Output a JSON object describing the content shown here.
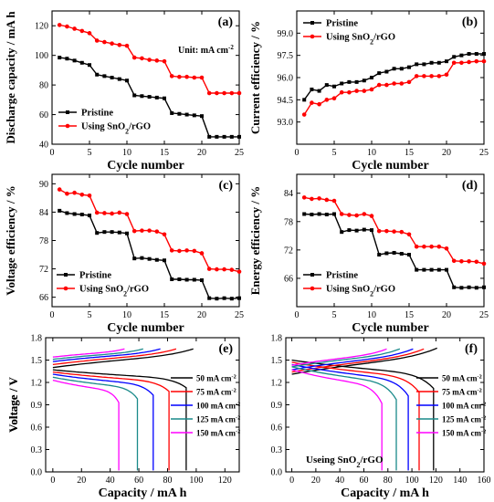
{
  "figure": {
    "panels": [
      {
        "letter": "(a)",
        "chart_data": {
          "type": "line",
          "xlabel": "Cycle number",
          "ylabel": "Discharge capacity / mA h",
          "xlim": [
            0,
            25
          ],
          "ylim": [
            40,
            130
          ],
          "xticks": [
            0,
            5,
            10,
            15,
            20,
            25
          ],
          "yticks": [
            40,
            60,
            80,
            100,
            120
          ],
          "annotation": "Unit:  mA cm",
          "annotation_sup": "-2",
          "legend": "bottom-left",
          "series": [
            {
              "name": "Pristine",
              "color": "#000000",
              "marker": "square",
              "x": [
                1,
                2,
                3,
                4,
                5,
                6,
                7,
                8,
                9,
                10,
                11,
                12,
                13,
                14,
                15,
                16,
                17,
                18,
                19,
                20,
                21,
                22,
                23,
                24,
                25
              ],
              "y": [
                98.5,
                97.8,
                96.5,
                95,
                93.5,
                87,
                86,
                85,
                84,
                83,
                73,
                72.5,
                72,
                71.5,
                71,
                61,
                60.5,
                60,
                59.5,
                59,
                45,
                45,
                45,
                45,
                45
              ]
            },
            {
              "name": "Using SnO",
              "name_sub": "2",
              "name_tail": "/rGO",
              "color": "#ff0000",
              "marker": "circle",
              "x": [
                1,
                2,
                3,
                4,
                5,
                6,
                7,
                8,
                9,
                10,
                11,
                12,
                13,
                14,
                15,
                16,
                17,
                18,
                19,
                20,
                21,
                22,
                23,
                24,
                25
              ],
              "y": [
                120.5,
                119.5,
                118,
                116.5,
                115,
                110,
                109,
                108,
                107,
                106.5,
                98.5,
                98,
                97,
                96.5,
                96,
                86,
                85.5,
                85.5,
                85,
                85,
                74.5,
                74.5,
                74.5,
                74.5,
                74.5
              ]
            }
          ]
        }
      },
      {
        "letter": "(b)",
        "chart_data": {
          "type": "line",
          "xlabel": "Cycle number",
          "ylabel": "Current efficiency / %",
          "xlim": [
            0,
            25
          ],
          "ylim": [
            91.5,
            100.5
          ],
          "xticks": [
            0,
            5,
            10,
            15,
            20,
            25
          ],
          "yticks": [
            93.0,
            94.5,
            96.0,
            97.5,
            99.0
          ],
          "ytick_decimals": 1,
          "legend": "top-left",
          "series": [
            {
              "name": "Pristine",
              "color": "#000000",
              "marker": "square",
              "x": [
                1,
                2,
                3,
                4,
                5,
                6,
                7,
                8,
                9,
                10,
                11,
                12,
                13,
                14,
                15,
                16,
                17,
                18,
                19,
                20,
                21,
                22,
                23,
                24,
                25
              ],
              "y": [
                94.5,
                95.2,
                95.1,
                95.5,
                95.4,
                95.6,
                95.7,
                95.7,
                95.8,
                96,
                96.3,
                96.4,
                96.6,
                96.6,
                96.7,
                96.9,
                96.9,
                97,
                97,
                97.1,
                97.4,
                97.5,
                97.6,
                97.6,
                97.6
              ]
            },
            {
              "name": "Using SnO",
              "name_sub": "2",
              "name_tail": "/rGO",
              "color": "#ff0000",
              "marker": "circle",
              "x": [
                1,
                2,
                3,
                4,
                5,
                6,
                7,
                8,
                9,
                10,
                11,
                12,
                13,
                14,
                15,
                16,
                17,
                18,
                19,
                20,
                21,
                22,
                23,
                24,
                25
              ],
              "y": [
                93.5,
                94.3,
                94.2,
                94.5,
                94.6,
                95,
                95,
                95.1,
                95.1,
                95.2,
                95.5,
                95.5,
                95.6,
                95.6,
                95.7,
                96.1,
                96.1,
                96.1,
                96.1,
                96.2,
                97,
                97,
                97.05,
                97.1,
                97.1
              ]
            }
          ]
        }
      },
      {
        "letter": "(c)",
        "chart_data": {
          "type": "line",
          "xlabel": "Cycle number",
          "ylabel": "Voltage efficiency / %",
          "xlim": [
            0,
            25
          ],
          "ylim": [
            64,
            92
          ],
          "xticks": [
            0,
            5,
            10,
            15,
            20,
            25
          ],
          "yticks": [
            66,
            72,
            78,
            84,
            90
          ],
          "legend": "bottom-left",
          "series": [
            {
              "name": "Pristine",
              "color": "#000000",
              "marker": "square",
              "x": [
                1,
                2,
                3,
                4,
                5,
                6,
                7,
                8,
                9,
                10,
                11,
                12,
                13,
                14,
                15,
                16,
                17,
                18,
                19,
                20,
                21,
                22,
                23,
                24,
                25
              ],
              "y": [
                84.3,
                83.8,
                83.6,
                83.5,
                83.3,
                79.6,
                79.8,
                79.8,
                79.7,
                79.5,
                74.2,
                74.3,
                74.1,
                73.9,
                73.8,
                69.8,
                69.8,
                69.7,
                69.7,
                69.6,
                65.8,
                65.7,
                65.8,
                65.7,
                65.8
              ]
            },
            {
              "name": "Using SnO",
              "name_sub": "2",
              "name_tail": "/rGO",
              "color": "#ff0000",
              "marker": "circle",
              "x": [
                1,
                2,
                3,
                4,
                5,
                6,
                7,
                8,
                9,
                10,
                11,
                12,
                13,
                14,
                15,
                16,
                17,
                18,
                19,
                20,
                21,
                22,
                23,
                24,
                25
              ],
              "y": [
                88.8,
                87.9,
                88.1,
                87.7,
                87.5,
                83.9,
                83.8,
                83.7,
                83.9,
                83.6,
                80,
                80.1,
                80.1,
                79.9,
                79.3,
                75.9,
                75.8,
                75.9,
                75.8,
                75.3,
                72,
                71.9,
                71.9,
                71.8,
                71.4
              ]
            }
          ]
        }
      },
      {
        "letter": "(d)",
        "chart_data": {
          "type": "line",
          "xlabel": "Cycle number",
          "ylabel": "Energy efficiency / %",
          "xlim": [
            0,
            25
          ],
          "ylim": [
            60,
            88
          ],
          "xticks": [
            0,
            5,
            10,
            15,
            20,
            25
          ],
          "yticks": [
            66,
            72,
            78,
            84
          ],
          "legend": "bottom-left",
          "series": [
            {
              "name": "Pristine",
              "color": "#000000",
              "marker": "square",
              "x": [
                1,
                2,
                3,
                4,
                5,
                6,
                7,
                8,
                9,
                10,
                11,
                12,
                13,
                14,
                15,
                16,
                17,
                18,
                19,
                20,
                21,
                22,
                23,
                24,
                25
              ],
              "y": [
                79.6,
                79.5,
                79.6,
                79.5,
                79.6,
                75.8,
                76.2,
                76.1,
                76.3,
                76.2,
                71,
                71.3,
                71.4,
                71.2,
                71,
                67.8,
                67.8,
                67.8,
                67.8,
                67.8,
                64.1,
                64,
                64.1,
                64,
                64.1
              ]
            },
            {
              "name": "Using SnO",
              "name_sub": "2",
              "name_tail": "/rGO",
              "color": "#ff0000",
              "marker": "circle",
              "x": [
                1,
                2,
                3,
                4,
                5,
                6,
                7,
                8,
                9,
                10,
                11,
                12,
                13,
                14,
                15,
                16,
                17,
                18,
                19,
                20,
                21,
                22,
                23,
                24,
                25
              ],
              "y": [
                83.1,
                82.8,
                82.9,
                82.6,
                82.4,
                79.6,
                79.4,
                79.3,
                79.6,
                79.2,
                76,
                76,
                75.9,
                75.8,
                75.3,
                72.7,
                72.7,
                72.7,
                72.7,
                72.3,
                69.7,
                69.6,
                69.6,
                69.5,
                69.1
              ]
            }
          ]
        }
      },
      {
        "letter": "(e)",
        "chart_data": {
          "type": "line",
          "xlabel": "Capacity / mA h",
          "ylabel": "Voltage / V",
          "xlim": [
            -5,
            130
          ],
          "ylim": [
            0,
            1.8
          ],
          "xticks": [
            0,
            20,
            40,
            60,
            80,
            100,
            120
          ],
          "yticks": [
            0.0,
            0.3,
            0.6,
            0.9,
            1.2,
            1.5,
            1.8
          ],
          "ytick_decimals": 1,
          "legend": "right",
          "series": [
            {
              "name": "50 mA cm",
              "name_sup": "-2",
              "color": "#000000",
              "cap_charge": 98,
              "cap_discharge": 93,
              "v_charge": [
                1.4,
                1.65
              ],
              "v_discharge": [
                1.37,
                1.13
              ]
            },
            {
              "name": "75 mA cm",
              "name_sup": "-2",
              "color": "#ff0000",
              "cap_charge": 86,
              "cap_discharge": 81,
              "v_charge": [
                1.44,
                1.65
              ],
              "v_discharge": [
                1.34,
                1.08
              ]
            },
            {
              "name": "100 mA cm",
              "name_sup": "-2",
              "color": "#0000ff",
              "cap_charge": 75,
              "cap_discharge": 70,
              "v_charge": [
                1.48,
                1.65
              ],
              "v_discharge": [
                1.31,
                1.03
              ]
            },
            {
              "name": "125 mA cm",
              "name_sup": "-2",
              "color": "#1a8a8a",
              "cap_charge": 63,
              "cap_discharge": 59,
              "v_charge": [
                1.51,
                1.65
              ],
              "v_discharge": [
                1.27,
                0.98
              ]
            },
            {
              "name": "150 mA cm",
              "name_sup": "-2",
              "color": "#ff00ff",
              "cap_charge": 50,
              "cap_discharge": 46,
              "v_charge": [
                1.54,
                1.65
              ],
              "v_discharge": [
                1.23,
                0.93
              ]
            }
          ]
        }
      },
      {
        "letter": "(f)",
        "chart_data": {
          "type": "line",
          "xlabel": "Capacity / mA h",
          "ylabel": "Voltage / V",
          "xlim": [
            -5,
            160
          ],
          "ylim": [
            0,
            1.8
          ],
          "xticks": [
            0,
            20,
            40,
            60,
            80,
            100,
            120,
            140,
            160
          ],
          "yticks": [
            0.0,
            0.3,
            0.6,
            0.9,
            1.2,
            1.5,
            1.8
          ],
          "ytick_decimals": 1,
          "annotation": "Useing SnO",
          "annotation_sub": "2",
          "annotation_tail": "/rGO",
          "legend": "right",
          "series": [
            {
              "name": "50 mA cm",
              "name_sup": "-2",
              "color": "#000000",
              "cap_charge": 121,
              "cap_discharge": 118,
              "v_charge": [
                1.31,
                1.66
              ],
              "v_discharge": [
                1.5,
                1.12
              ]
            },
            {
              "name": "75 mA cm",
              "name_sup": "-2",
              "color": "#ff0000",
              "cap_charge": 110,
              "cap_discharge": 106,
              "v_charge": [
                1.34,
                1.65
              ],
              "v_discharge": [
                1.47,
                1.07
              ]
            },
            {
              "name": "100 mA cm",
              "name_sup": "-2",
              "color": "#0000ff",
              "cap_charge": 101,
              "cap_discharge": 97,
              "v_charge": [
                1.37,
                1.65
              ],
              "v_discharge": [
                1.44,
                1.02
              ]
            },
            {
              "name": "125 mA cm",
              "name_sup": "-2",
              "color": "#1a8a8a",
              "cap_charge": 90,
              "cap_discharge": 87,
              "v_charge": [
                1.41,
                1.65
              ],
              "v_discharge": [
                1.41,
                0.97
              ]
            },
            {
              "name": "150 mA cm",
              "name_sup": "-2",
              "color": "#ff00ff",
              "cap_charge": 79,
              "cap_discharge": 75,
              "v_charge": [
                1.43,
                1.65
              ],
              "v_discharge": [
                1.37,
                0.92
              ]
            }
          ]
        }
      }
    ]
  }
}
